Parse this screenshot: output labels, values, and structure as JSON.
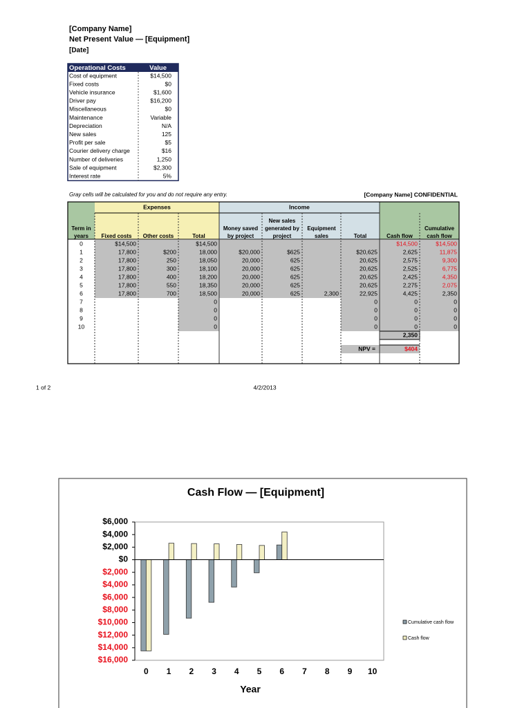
{
  "header": {
    "company": "[Company Name]",
    "title": "Net Present Value — [Equipment]",
    "date": "[Date]"
  },
  "op_costs": {
    "columns": [
      "Operational Costs",
      "Value"
    ],
    "rows": [
      [
        "Cost of equipment",
        "$14,500"
      ],
      [
        "Fixed costs",
        "$0"
      ],
      [
        "Vehicle insurance",
        "$1,600"
      ],
      [
        "Driver pay",
        "$16,200"
      ],
      [
        "Miscellaneous",
        "$0"
      ],
      [
        "Maintenance",
        "Variable"
      ],
      [
        "Depreciation",
        "N/A"
      ],
      [
        "New sales",
        "125"
      ],
      [
        "Profit per sale",
        "$5"
      ],
      [
        "Courier delivery charge",
        "$16"
      ],
      [
        "Number of deliveries",
        "1,250"
      ],
      [
        "Sale of equipment",
        "$2,300"
      ],
      [
        "Interest rate",
        "5%"
      ]
    ]
  },
  "note": "Gray cells will be calculated for you and do not require any entry.",
  "confidential": "[Company Name] CONFIDENTIAL",
  "table": {
    "groups": [
      "Expenses",
      "Income"
    ],
    "columns": [
      [
        "Term in",
        "years"
      ],
      [
        "Fixed costs"
      ],
      [
        "Other costs"
      ],
      [
        "Total"
      ],
      [
        "Money saved",
        "by project"
      ],
      [
        "New sales",
        "generated by",
        "project"
      ],
      [
        "Equipment",
        "sales"
      ],
      [
        "Total"
      ],
      [
        "Cash flow"
      ],
      [
        "Cumulative",
        "cash flow"
      ]
    ],
    "rows": [
      [
        "0",
        "$14,500",
        null,
        "$14,500",
        null,
        null,
        null,
        null,
        "$14,500",
        "$14,500"
      ],
      [
        "1",
        "17,800",
        "$200",
        "18,000",
        "$20,000",
        "$625",
        null,
        "$20,625",
        "2,625",
        "11,875"
      ],
      [
        "2",
        "17,800",
        "250",
        "18,050",
        "20,000",
        "625",
        null,
        "20,625",
        "2,575",
        "9,300"
      ],
      [
        "3",
        "17,800",
        "300",
        "18,100",
        "20,000",
        "625",
        null,
        "20,625",
        "2,525",
        "6,775"
      ],
      [
        "4",
        "17,800",
        "400",
        "18,200",
        "20,000",
        "625",
        null,
        "20,625",
        "2,425",
        "4,350"
      ],
      [
        "5",
        "17,800",
        "550",
        "18,350",
        "20,000",
        "625",
        null,
        "20,625",
        "2,275",
        "2,075"
      ],
      [
        "6",
        "17,800",
        "700",
        "18,500",
        "20,000",
        "625",
        "2,300",
        "22,925",
        "4,425",
        "2,350"
      ],
      [
        "7",
        null,
        null,
        "0",
        null,
        null,
        null,
        "0",
        "0",
        "0"
      ],
      [
        "8",
        null,
        null,
        "0",
        null,
        null,
        null,
        "0",
        "0",
        "0"
      ],
      [
        "9",
        null,
        null,
        "0",
        null,
        null,
        null,
        "0",
        "0",
        "0"
      ],
      [
        "10",
        null,
        null,
        "0",
        null,
        null,
        null,
        "0",
        "0",
        "0"
      ]
    ],
    "red_cells": [
      [
        0,
        8
      ],
      [
        0,
        9
      ],
      [
        1,
        9
      ],
      [
        2,
        9
      ],
      [
        3,
        9
      ],
      [
        4,
        9
      ],
      [
        5,
        9
      ]
    ],
    "cash_flow_total": "2,350",
    "npv_label": "NPV =",
    "npv": "$404"
  },
  "footer": {
    "page": "1 of 2",
    "date": "4/2/2013"
  },
  "chart_data": {
    "type": "bar",
    "title": "Cash Flow — [Equipment]",
    "x_label": "Year",
    "categories": [
      "0",
      "1",
      "2",
      "3",
      "4",
      "5",
      "6",
      "7",
      "8",
      "9",
      "10"
    ],
    "series": [
      {
        "name": "Cumulative cash flow",
        "color": "#8fa1ab",
        "values": [
          -14500,
          -11875,
          -9300,
          -6775,
          -4350,
          -2075,
          2350,
          0,
          0,
          0,
          0
        ]
      },
      {
        "name": "Cash flow",
        "color": "#f4f0c4",
        "values": [
          -14500,
          2625,
          2575,
          2525,
          2425,
          2275,
          4425,
          0,
          0,
          0,
          0
        ]
      }
    ],
    "ylim": [
      -16000,
      6000
    ],
    "yticks": [
      {
        "value": -16000,
        "label": "$16,000"
      },
      {
        "value": -14000,
        "label": "$14,000"
      },
      {
        "value": -12000,
        "label": "$12,000"
      },
      {
        "value": -10000,
        "label": "$10,000"
      },
      {
        "value": -8000,
        "label": "$8,000"
      },
      {
        "value": -6000,
        "label": "$6,000"
      },
      {
        "value": -4000,
        "label": "$4,000"
      },
      {
        "value": -2000,
        "label": "$2,000"
      },
      {
        "value": 0,
        "label": "$0"
      },
      {
        "value": 2000,
        "label": "$2,000"
      },
      {
        "value": 4000,
        "label": "$4,000"
      },
      {
        "value": 6000,
        "label": "$6,000"
      }
    ],
    "negative_tick_color": "#e8101c",
    "legend": "right"
  }
}
